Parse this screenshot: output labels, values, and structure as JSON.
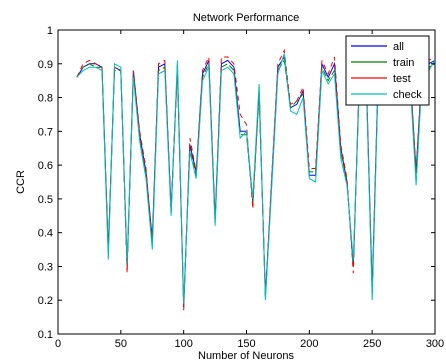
{
  "chart_data": {
    "type": "line",
    "title": "Network Performance",
    "xlabel": "Number of Neurons",
    "ylabel": "CCR",
    "xlim": [
      0,
      300
    ],
    "ylim": [
      0.1,
      1
    ],
    "xticks": [
      "0",
      "50",
      "100",
      "150",
      "200",
      "250",
      "300"
    ],
    "yticks": [
      "0.1",
      "0.2",
      "0.3",
      "0.4",
      "0.5",
      "0.6",
      "0.7",
      "0.8",
      "0.9",
      "1"
    ],
    "grid": false,
    "legend_position": "top-right",
    "x": [
      15,
      20,
      25,
      30,
      35,
      40,
      45,
      50,
      55,
      60,
      65,
      70,
      75,
      80,
      85,
      90,
      95,
      100,
      105,
      110,
      115,
      120,
      125,
      130,
      135,
      140,
      145,
      150,
      155,
      160,
      165,
      170,
      175,
      180,
      185,
      190,
      195,
      200,
      205,
      210,
      215,
      220,
      225,
      230,
      235,
      240,
      245,
      250,
      255,
      260,
      265,
      270,
      275,
      280,
      285,
      290,
      295,
      300
    ],
    "series": [
      {
        "name": "all",
        "color": "#0000ff",
        "values": [
          0.86,
          0.89,
          0.9,
          0.9,
          0.89,
          0.35,
          0.89,
          0.88,
          0.3,
          0.88,
          0.69,
          0.58,
          0.38,
          0.89,
          0.9,
          0.47,
          0.89,
          0.18,
          0.66,
          0.58,
          0.87,
          0.91,
          0.44,
          0.9,
          0.91,
          0.89,
          0.7,
          0.7,
          0.49,
          0.82,
          0.21,
          0.55,
          0.89,
          0.92,
          0.77,
          0.78,
          0.82,
          0.57,
          0.57,
          0.9,
          0.86,
          0.9,
          0.65,
          0.55,
          0.3,
          0.88,
          0.9,
          0.23,
          0.89,
          0.9,
          0.88,
          0.88,
          0.89,
          0.88,
          0.58,
          0.9,
          0.9,
          0.91
        ]
      },
      {
        "name": "train",
        "color": "#008000",
        "values": [
          0.86,
          0.89,
          0.9,
          0.89,
          0.89,
          0.34,
          0.88,
          0.88,
          0.3,
          0.87,
          0.68,
          0.57,
          0.37,
          0.88,
          0.89,
          0.46,
          0.88,
          0.19,
          0.65,
          0.57,
          0.86,
          0.9,
          0.43,
          0.89,
          0.9,
          0.88,
          0.69,
          0.69,
          0.49,
          0.81,
          0.21,
          0.54,
          0.88,
          0.91,
          0.77,
          0.79,
          0.81,
          0.58,
          0.58,
          0.89,
          0.85,
          0.88,
          0.64,
          0.55,
          0.3,
          0.87,
          0.89,
          0.23,
          0.88,
          0.89,
          0.87,
          0.87,
          0.88,
          0.87,
          0.58,
          0.89,
          0.89,
          0.9
        ]
      },
      {
        "name": "test",
        "color": "#ff0000",
        "values": [
          0.86,
          0.9,
          0.91,
          0.9,
          0.89,
          0.34,
          0.89,
          0.88,
          0.28,
          0.88,
          0.7,
          0.59,
          0.37,
          0.9,
          0.91,
          0.46,
          0.9,
          0.17,
          0.68,
          0.58,
          0.88,
          0.92,
          0.43,
          0.92,
          0.92,
          0.9,
          0.75,
          0.72,
          0.47,
          0.83,
          0.21,
          0.56,
          0.9,
          0.94,
          0.78,
          0.79,
          0.83,
          0.59,
          0.59,
          0.91,
          0.87,
          0.92,
          0.66,
          0.56,
          0.28,
          0.89,
          0.91,
          0.22,
          0.9,
          0.91,
          0.89,
          0.89,
          0.9,
          0.89,
          0.57,
          0.91,
          0.91,
          0.92
        ]
      },
      {
        "name": "check",
        "color": "#00bfbf",
        "values": [
          0.86,
          0.88,
          0.89,
          0.89,
          0.88,
          0.32,
          0.9,
          0.89,
          0.31,
          0.86,
          0.67,
          0.56,
          0.35,
          0.87,
          0.88,
          0.45,
          0.91,
          0.19,
          0.64,
          0.56,
          0.85,
          0.89,
          0.42,
          0.88,
          0.89,
          0.87,
          0.68,
          0.7,
          0.5,
          0.84,
          0.2,
          0.53,
          0.87,
          0.93,
          0.76,
          0.75,
          0.8,
          0.56,
          0.55,
          0.88,
          0.84,
          0.87,
          0.62,
          0.54,
          0.32,
          0.85,
          0.88,
          0.2,
          0.87,
          0.88,
          0.86,
          0.86,
          0.87,
          0.86,
          0.54,
          0.88,
          0.88,
          0.91
        ]
      }
    ]
  }
}
